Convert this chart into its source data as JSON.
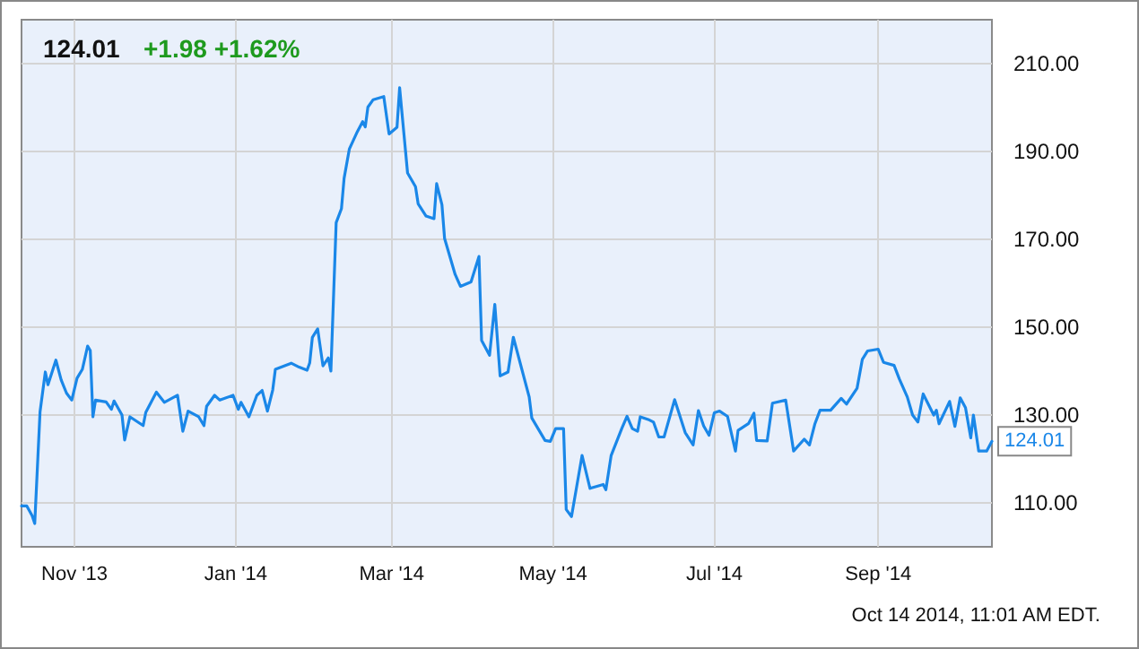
{
  "chart_data": {
    "type": "line",
    "title": "124.01",
    "subtitle": "+1.98 +1.62%",
    "x": [
      "2013-10-12",
      "2013-10-14",
      "2013-10-16",
      "2013-10-17",
      "2013-10-19",
      "2013-10-21",
      "2013-10-22",
      "2013-10-25",
      "2013-10-27",
      "2013-10-29",
      "2013-10-31",
      "2013-11-02",
      "2013-11-04",
      "2013-11-06",
      "2013-11-07",
      "2013-11-08",
      "2013-11-09",
      "2013-11-13",
      "2013-11-15",
      "2013-11-16",
      "2013-11-19",
      "2013-11-20",
      "2013-11-22",
      "2013-11-27",
      "2013-11-28",
      "2013-12-02",
      "2013-12-05",
      "2013-12-10",
      "2013-12-12",
      "2013-12-14",
      "2013-12-18",
      "2013-12-20",
      "2013-12-21",
      "2013-12-24",
      "2013-12-26",
      "2013-12-31",
      "2014-01-02",
      "2014-01-03",
      "2014-01-06",
      "2014-01-09",
      "2014-01-11",
      "2014-01-13",
      "2014-01-15",
      "2014-01-16",
      "2014-01-22",
      "2014-01-25",
      "2014-01-28",
      "2014-01-29",
      "2014-01-30",
      "2014-02-01",
      "2014-02-03",
      "2014-02-05",
      "2014-02-06",
      "2014-02-08",
      "2014-02-10",
      "2014-02-11",
      "2014-02-13",
      "2014-02-16",
      "2014-02-18",
      "2014-02-19",
      "2014-02-20",
      "2014-02-22",
      "2014-02-26",
      "2014-02-28",
      "2014-03-03",
      "2014-03-04",
      "2014-03-07",
      "2014-03-10",
      "2014-03-11",
      "2014-03-14",
      "2014-03-17",
      "2014-03-18",
      "2014-03-20",
      "2014-03-21",
      "2014-03-25",
      "2014-03-27",
      "2014-03-31",
      "2014-04-03",
      "2014-04-04",
      "2014-04-07",
      "2014-04-09",
      "2014-04-11",
      "2014-04-14",
      "2014-04-16",
      "2014-04-22",
      "2014-04-23",
      "2014-04-28",
      "2014-04-30",
      "2014-05-02",
      "2014-05-05",
      "2014-05-06",
      "2014-05-08",
      "2014-05-12",
      "2014-05-15",
      "2014-05-20",
      "2014-05-21",
      "2014-05-23",
      "2014-05-27",
      "2014-05-29",
      "2014-05-31",
      "2014-06-02",
      "2014-06-03",
      "2014-06-06",
      "2014-06-08",
      "2014-06-10",
      "2014-06-12",
      "2014-06-16",
      "2014-06-20",
      "2014-06-23",
      "2014-06-25",
      "2014-06-27",
      "2014-06-29",
      "2014-07-01",
      "2014-07-03",
      "2014-07-06",
      "2014-07-09",
      "2014-07-10",
      "2014-07-14",
      "2014-07-16",
      "2014-07-17",
      "2014-07-21",
      "2014-07-23",
      "2014-07-28",
      "2014-07-31",
      "2014-08-04",
      "2014-08-06",
      "2014-08-08",
      "2014-08-10",
      "2014-08-14",
      "2014-08-18",
      "2014-08-20",
      "2014-08-24",
      "2014-08-26",
      "2014-08-28",
      "2014-09-01",
      "2014-09-03",
      "2014-09-07",
      "2014-09-09",
      "2014-09-12",
      "2014-09-14",
      "2014-09-16",
      "2014-09-18",
      "2014-09-22",
      "2014-09-23",
      "2014-09-24",
      "2014-09-28",
      "2014-09-30",
      "2014-10-02",
      "2014-10-04",
      "2014-10-06",
      "2014-10-07",
      "2014-10-09",
      "2014-10-12",
      "2014-10-14"
    ],
    "series": [
      {
        "color": "#1a87e8",
        "values": [
          109.3,
          109.3,
          107.1,
          105.3,
          130.7,
          139.8,
          136.9,
          142.5,
          138,
          135,
          133.4,
          138.4,
          140.4,
          145.7,
          144.7,
          129.6,
          133.4,
          133,
          131.3,
          133.2,
          130,
          124.3,
          129.6,
          127.6,
          130.6,
          135.2,
          132.9,
          134.5,
          126.3,
          130.9,
          129.6,
          127.6,
          132,
          134.5,
          133.4,
          134.5,
          131.3,
          132.9,
          129.6,
          134.5,
          135.6,
          130.9,
          135.7,
          140.4,
          141.8,
          140.9,
          140.2,
          141.9,
          147.7,
          149.6,
          141.2,
          143,
          140,
          173.8,
          177,
          183.9,
          190.6,
          194.5,
          196.8,
          195.6,
          200.1,
          201.8,
          202.5,
          194,
          195.5,
          204.5,
          185.1,
          182,
          178.1,
          175.3,
          174.7,
          182.7,
          177.9,
          170.2,
          162,
          159.3,
          160.3,
          166.1,
          147,
          143.6,
          155.2,
          138.9,
          139.8,
          147.7,
          134.1,
          129.3,
          124.2,
          124,
          126.9,
          126.9,
          108.5,
          106.9,
          120.8,
          113.3,
          114.2,
          113,
          120.8,
          126.9,
          129.7,
          126.9,
          126.3,
          129.6,
          129,
          128.4,
          125,
          125,
          133.5,
          126,
          123.2,
          131,
          127.5,
          125.4,
          130.5,
          130.9,
          129.7,
          121.8,
          126.5,
          128.1,
          130.4,
          124.2,
          124.1,
          132.7,
          133.4,
          121.8,
          124.5,
          123.2,
          127.9,
          131.1,
          131.1,
          133.8,
          132.5,
          136.1,
          142.7,
          144.6,
          145,
          142,
          141.3,
          138.2,
          134.1,
          130,
          128.4,
          134.8,
          130,
          131.1,
          128,
          133.1,
          127.4,
          133.9,
          131.7,
          124.8,
          130,
          121.8,
          121.8,
          124.01
        ]
      }
    ],
    "xlim": [
      "2013-10-12",
      "2014-10-14"
    ],
    "xticks": [
      {
        "value": "2013-11-01",
        "label": "Nov '13"
      },
      {
        "value": "2014-01-01",
        "label": "Jan '14"
      },
      {
        "value": "2014-03-01",
        "label": "Mar '14"
      },
      {
        "value": "2014-05-01",
        "label": "May '14"
      },
      {
        "value": "2014-07-01",
        "label": "Jul '14"
      },
      {
        "value": "2014-09-01",
        "label": "Sep '14"
      }
    ],
    "ylim": [
      100,
      220
    ],
    "yticks": [
      {
        "value": 110,
        "label": "110.00"
      },
      {
        "value": 130,
        "label": "130.00"
      },
      {
        "value": 150,
        "label": "150.00"
      },
      {
        "value": 170,
        "label": "170.00"
      },
      {
        "value": 190,
        "label": "190.00"
      },
      {
        "value": 210,
        "label": "210.00"
      }
    ],
    "grid": true,
    "marker": "none",
    "line_style": "solid",
    "annotations": [
      {
        "text": "124.01",
        "x": "2014-10-14",
        "y": 124.01
      },
      "Oct 14 2014, 11:01 AM EDT."
    ]
  }
}
